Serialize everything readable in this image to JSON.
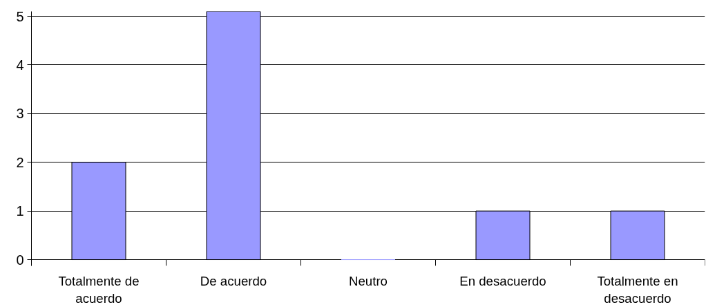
{
  "chart_data": {
    "type": "bar",
    "categories": [
      "Totalmente de acuerdo",
      "De acuerdo",
      "Neutro",
      "En desacuerdo",
      "Totalmente en desacuerdo"
    ],
    "values": [
      2,
      5.1,
      0,
      1,
      1
    ],
    "color": "#9999ff",
    "ylim": [
      0,
      5.1
    ],
    "yticks": [
      0,
      1,
      2,
      3,
      4,
      5
    ],
    "grid": "y"
  }
}
